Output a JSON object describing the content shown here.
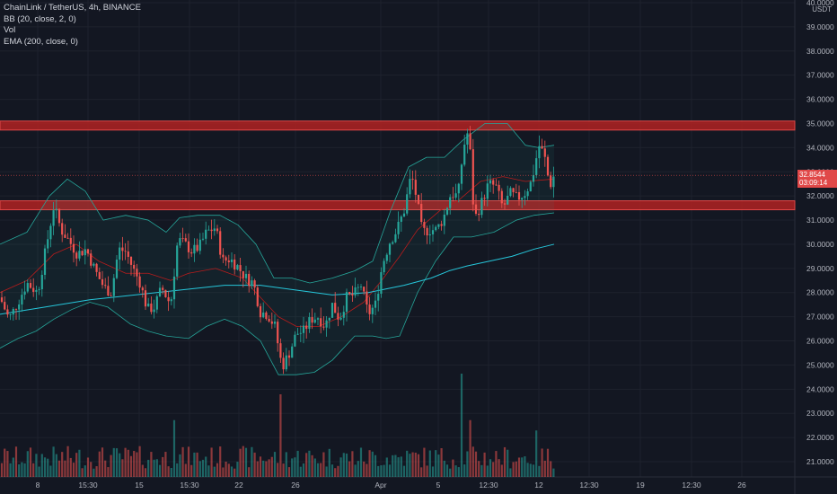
{
  "legend": {
    "symbol": "ChainLink / TetherUS, 4h, BINANCE",
    "bb": "BB (20, close, 2, 0)",
    "vol": "Vol",
    "ema": "EMA (200, close, 0)"
  },
  "axis": {
    "currency": "USDT",
    "price_ticks": [
      "40.0000",
      "39.0000",
      "38.0000",
      "37.0000",
      "36.0000",
      "35.0000",
      "34.0000",
      "33.0000",
      "32.0000",
      "31.0000",
      "30.0000",
      "29.0000",
      "28.0000",
      "27.0000",
      "26.0000",
      "25.0000",
      "24.0000",
      "23.0000",
      "22.0000",
      "21.0000"
    ],
    "time_ticks": [
      "8",
      "15:30",
      "15",
      "15:30",
      "22",
      "26",
      "Apr",
      "5",
      "12:30",
      "12",
      "12:30",
      "19",
      "12:30",
      "26"
    ]
  },
  "last_price": {
    "price": "32.8544",
    "countdown": "03:09:14"
  },
  "colors": {
    "background": "#131722",
    "up": "#26a69a",
    "down": "#ef5350",
    "ema": "#26c6da",
    "bb_basis": "#b71c1c",
    "bb_band": "#26a69a",
    "zone": "#b22222",
    "grid": "#1e222d"
  },
  "chart_data": {
    "type": "candlestick",
    "interval": "4h",
    "ylim": [
      20.5,
      40.0
    ],
    "resistance_zones": [
      {
        "from": 34.8,
        "to": 35.1
      },
      {
        "from": 31.5,
        "to": 31.8
      }
    ],
    "ema200_path": [
      [
        0,
        27.1
      ],
      [
        50,
        27.4
      ],
      [
        100,
        27.7
      ],
      [
        150,
        27.9
      ],
      [
        200,
        28.1
      ],
      [
        250,
        28.3
      ],
      [
        290,
        28.3
      ],
      [
        330,
        28.1
      ],
      [
        370,
        27.9
      ],
      [
        410,
        28.0
      ],
      [
        450,
        28.3
      ],
      [
        480,
        28.6
      ],
      [
        500,
        28.9
      ],
      [
        520,
        29.1
      ],
      [
        545,
        29.3
      ],
      [
        570,
        29.5
      ],
      [
        595,
        29.8
      ],
      [
        617,
        30.0
      ]
    ],
    "close_path": [
      [
        0,
        27.8
      ],
      [
        10,
        26.9
      ],
      [
        20,
        27.6
      ],
      [
        30,
        28.4
      ],
      [
        42,
        28.0
      ],
      [
        52,
        30.0
      ],
      [
        60,
        31.6
      ],
      [
        68,
        30.6
      ],
      [
        76,
        30.2
      ],
      [
        86,
        29.6
      ],
      [
        96,
        29.8
      ],
      [
        106,
        28.9
      ],
      [
        116,
        28.2
      ],
      [
        124,
        28.0
      ],
      [
        132,
        29.8
      ],
      [
        140,
        29.7
      ],
      [
        148,
        29.0
      ],
      [
        156,
        28.4
      ],
      [
        164,
        27.3
      ],
      [
        172,
        27.4
      ],
      [
        180,
        28.2
      ],
      [
        190,
        27.5
      ],
      [
        198,
        30.2
      ],
      [
        206,
        30.0
      ],
      [
        214,
        29.7
      ],
      [
        222,
        29.9
      ],
      [
        230,
        30.5
      ],
      [
        240,
        30.7
      ],
      [
        248,
        29.3
      ],
      [
        256,
        29.4
      ],
      [
        264,
        29.1
      ],
      [
        274,
        28.6
      ],
      [
        282,
        28.4
      ],
      [
        290,
        27.2
      ],
      [
        298,
        27.1
      ],
      [
        306,
        26.6
      ],
      [
        314,
        24.9
      ],
      [
        322,
        25.5
      ],
      [
        330,
        26.3
      ],
      [
        338,
        26.4
      ],
      [
        346,
        26.9
      ],
      [
        354,
        27.0
      ],
      [
        362,
        26.6
      ],
      [
        370,
        27.5
      ],
      [
        378,
        26.9
      ],
      [
        386,
        27.8
      ],
      [
        394,
        27.9
      ],
      [
        402,
        28.3
      ],
      [
        410,
        27.1
      ],
      [
        418,
        27.5
      ],
      [
        426,
        29.2
      ],
      [
        434,
        30.1
      ],
      [
        442,
        30.6
      ],
      [
        450,
        31.4
      ],
      [
        458,
        32.9
      ],
      [
        464,
        31.9
      ],
      [
        470,
        30.5
      ],
      [
        478,
        30.6
      ],
      [
        486,
        30.6
      ],
      [
        494,
        31.1
      ],
      [
        502,
        32.1
      ],
      [
        510,
        32.0
      ],
      [
        516,
        34.0
      ],
      [
        522,
        34.8
      ],
      [
        528,
        31.0
      ],
      [
        536,
        31.7
      ],
      [
        544,
        32.5
      ],
      [
        552,
        32.4
      ],
      [
        560,
        31.5
      ],
      [
        568,
        32.1
      ],
      [
        576,
        31.9
      ],
      [
        584,
        32.1
      ],
      [
        592,
        32.6
      ],
      [
        600,
        34.1
      ],
      [
        606,
        33.7
      ],
      [
        612,
        32.4
      ],
      [
        617,
        32.85
      ]
    ],
    "bb_upper_path": [
      [
        0,
        30.0
      ],
      [
        30,
        30.5
      ],
      [
        55,
        32.0
      ],
      [
        75,
        32.7
      ],
      [
        95,
        32.2
      ],
      [
        115,
        31.0
      ],
      [
        140,
        31.2
      ],
      [
        165,
        31.0
      ],
      [
        185,
        30.5
      ],
      [
        200,
        31.1
      ],
      [
        220,
        31.2
      ],
      [
        245,
        31.2
      ],
      [
        265,
        30.8
      ],
      [
        285,
        30.0
      ],
      [
        305,
        28.6
      ],
      [
        325,
        28.6
      ],
      [
        345,
        28.4
      ],
      [
        370,
        28.6
      ],
      [
        395,
        28.9
      ],
      [
        415,
        29.3
      ],
      [
        435,
        31.4
      ],
      [
        455,
        33.2
      ],
      [
        475,
        33.6
      ],
      [
        495,
        33.6
      ],
      [
        515,
        34.3
      ],
      [
        540,
        35.0
      ],
      [
        565,
        35.0
      ],
      [
        585,
        34.1
      ],
      [
        600,
        34.0
      ],
      [
        617,
        34.1
      ]
    ],
    "bb_lower_path": [
      [
        0,
        25.7
      ],
      [
        20,
        26.1
      ],
      [
        40,
        26.4
      ],
      [
        60,
        26.9
      ],
      [
        80,
        27.3
      ],
      [
        100,
        27.6
      ],
      [
        120,
        27.4
      ],
      [
        145,
        26.7
      ],
      [
        165,
        26.4
      ],
      [
        185,
        26.2
      ],
      [
        210,
        26.1
      ],
      [
        230,
        26.6
      ],
      [
        250,
        26.9
      ],
      [
        270,
        26.6
      ],
      [
        290,
        26.0
      ],
      [
        310,
        24.6
      ],
      [
        330,
        24.6
      ],
      [
        350,
        24.7
      ],
      [
        370,
        25.2
      ],
      [
        395,
        26.2
      ],
      [
        415,
        26.2
      ],
      [
        430,
        26.1
      ],
      [
        445,
        26.2
      ],
      [
        465,
        28.0
      ],
      [
        485,
        29.3
      ],
      [
        505,
        30.3
      ],
      [
        525,
        30.3
      ],
      [
        550,
        30.5
      ],
      [
        575,
        31.0
      ],
      [
        595,
        31.2
      ],
      [
        617,
        31.3
      ]
    ],
    "bb_basis_path": [
      [
        0,
        28.0
      ],
      [
        30,
        28.5
      ],
      [
        60,
        29.6
      ],
      [
        85,
        30.0
      ],
      [
        110,
        29.3
      ],
      [
        140,
        28.8
      ],
      [
        165,
        28.8
      ],
      [
        190,
        28.5
      ],
      [
        210,
        28.8
      ],
      [
        240,
        29.0
      ],
      [
        270,
        28.6
      ],
      [
        290,
        27.8
      ],
      [
        310,
        27.0
      ],
      [
        330,
        26.6
      ],
      [
        355,
        26.6
      ],
      [
        380,
        27.0
      ],
      [
        405,
        27.6
      ],
      [
        425,
        28.5
      ],
      [
        445,
        29.5
      ],
      [
        465,
        30.6
      ],
      [
        490,
        31.4
      ],
      [
        510,
        31.8
      ],
      [
        535,
        32.6
      ],
      [
        560,
        32.8
      ],
      [
        585,
        32.6
      ],
      [
        617,
        32.7
      ]
    ],
    "volume_bars": [
      {
        "x": 312,
        "level": 0.8
      },
      {
        "x": 515,
        "level": 1.0
      },
      {
        "x": 522,
        "level": 0.55
      },
      {
        "x": 598,
        "level": 0.45
      },
      {
        "x": 193,
        "level": 0.55
      }
    ]
  }
}
